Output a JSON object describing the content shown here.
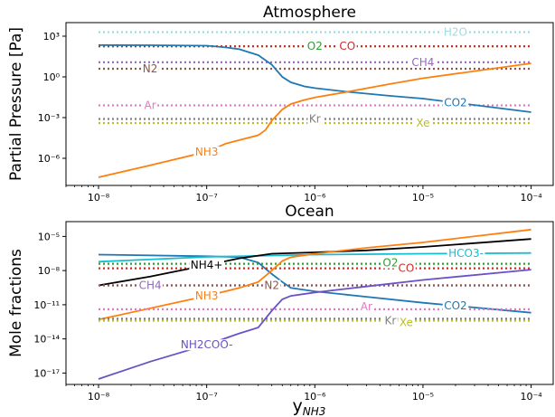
{
  "xlabel": "y",
  "xlabel_sub": "NH3",
  "chart_data": [
    {
      "type": "line",
      "title": "Atmosphere",
      "ylabel": "Partial Pressure [Pa]",
      "xscale": "log",
      "yscale": "log",
      "xlim": [
        5e-09,
        0.00016
      ],
      "ylim": [
        1e-08,
        10000.0
      ],
      "xticks": [
        1e-08,
        1e-07,
        1e-06,
        1e-05,
        0.0001
      ],
      "xtick_labels": [
        "10⁻⁸",
        "10⁻⁷",
        "10⁻⁶",
        "10⁻⁵",
        "10⁻⁴"
      ],
      "yticks": [
        1e-06,
        0.001,
        1,
        1000
      ],
      "ytick_labels": [
        "10⁻⁶",
        "10⁻³",
        "10⁰",
        "10³"
      ],
      "series": [
        {
          "name": "H2O",
          "color": "#9edae5",
          "style": "dotted",
          "x": [
            1e-08,
            0.0001
          ],
          "y": [
            2000,
            2000
          ],
          "label_x": 2e-05
        },
        {
          "name": "O2",
          "color": "#2ca02c",
          "style": "dotted",
          "x": [
            1e-08,
            0.0001
          ],
          "y": [
            180,
            180
          ],
          "label_x": 1e-06
        },
        {
          "name": "CO",
          "color": "#d62728",
          "style": "dotted",
          "x": [
            1e-08,
            0.0001
          ],
          "y": [
            180,
            180
          ],
          "label_x": 2e-06
        },
        {
          "name": "CH4",
          "color": "#9467bd",
          "style": "dotted",
          "x": [
            1e-08,
            0.0001
          ],
          "y": [
            12,
            12
          ],
          "label_x": 1e-05
        },
        {
          "name": "N2",
          "color": "#8c564b",
          "style": "dotted",
          "x": [
            1e-08,
            0.0001
          ],
          "y": [
            4,
            4
          ],
          "label_x": 3e-08
        },
        {
          "name": "Ar",
          "color": "#e377c2",
          "style": "dotted",
          "x": [
            1e-08,
            0.0001
          ],
          "y": [
            0.008,
            0.008
          ],
          "label_x": 3e-08
        },
        {
          "name": "Kr",
          "color": "#7f7f7f",
          "style": "dotted",
          "x": [
            1e-08,
            0.0001
          ],
          "y": [
            0.0008,
            0.0008
          ],
          "label_x": 1e-06
        },
        {
          "name": "Xe",
          "color": "#bcbd22",
          "style": "dotted",
          "x": [
            1e-08,
            0.0001
          ],
          "y": [
            0.0004,
            0.0004
          ],
          "label_x": 1e-05
        },
        {
          "name": "CO2",
          "color": "#1f77b4",
          "style": "solid",
          "x": [
            1e-08,
            3e-08,
            1e-07,
            1.5e-07,
            2e-07,
            3e-07,
            4e-07,
            5e-07,
            6e-07,
            8e-07,
            1e-06,
            2e-06,
            5e-06,
            1e-05,
            0.0001
          ],
          "y": [
            220,
            215,
            200,
            150,
            110,
            40,
            8,
            1,
            0.4,
            0.2,
            0.15,
            0.08,
            0.04,
            0.025,
            0.0025
          ],
          "label_x": 2e-05
        },
        {
          "name": "NH3",
          "color": "#ff7f0e",
          "style": "solid",
          "x": [
            1e-08,
            3e-08,
            1e-07,
            1.5e-07,
            2e-07,
            3e-07,
            3.5e-07,
            4e-07,
            5e-07,
            6e-07,
            8e-07,
            1e-06,
            2e-06,
            5e-06,
            1e-05,
            0.0001
          ],
          "y": [
            4e-08,
            3e-07,
            3e-06,
            1.2e-05,
            2.2e-05,
            5e-05,
            0.00012,
            0.0006,
            0.004,
            0.01,
            0.02,
            0.03,
            0.08,
            0.3,
            0.8,
            10
          ],
          "label_x": 1e-07
        }
      ]
    },
    {
      "type": "line",
      "title": "Ocean",
      "ylabel": "Mole fractions",
      "xscale": "log",
      "yscale": "log",
      "xlim": [
        5e-09,
        0.00016
      ],
      "ylim": [
        1e-18,
        0.0002
      ],
      "xticks": [
        1e-08,
        1e-07,
        1e-06,
        1e-05,
        0.0001
      ],
      "xtick_labels": [
        "10⁻⁸",
        "10⁻⁷",
        "10⁻⁶",
        "10⁻⁵",
        "10⁻⁴"
      ],
      "yticks": [
        1e-17,
        1e-14,
        1e-11,
        1e-08,
        1e-05
      ],
      "ytick_labels": [
        "10⁻¹⁷",
        "10⁻¹⁴",
        "10⁻¹¹",
        "10⁻⁸",
        "10⁻⁵"
      ],
      "series": [
        {
          "name": "CO2",
          "color": "#1f77b4",
          "style": "solid",
          "x": [
            1e-08,
            1e-07,
            2e-07,
            3e-07,
            4e-07,
            5e-07,
            6e-07,
            1e-06,
            3e-06,
            1e-05,
            0.0001
          ],
          "y": [
            2.5e-07,
            1.8e-07,
            1.5e-07,
            5e-08,
            5e-09,
            1e-09,
            3e-10,
            1.5e-10,
            5e-11,
            1.5e-11,
            2e-12
          ],
          "label_x": 2e-05
        },
        {
          "name": "HCO3-",
          "color": "#17becf",
          "style": "solid",
          "x": [
            1e-08,
            5e-08,
            1e-07,
            1e-06,
            1e-05,
            0.0001
          ],
          "y": [
            6e-08,
            1.2e-07,
            1.6e-07,
            2.5e-07,
            3e-07,
            3.5e-07
          ],
          "label_x": 2.5e-05
        },
        {
          "name": "O2",
          "color": "#2ca02c",
          "style": "dotted",
          "x": [
            1e-08,
            0.0001
          ],
          "y": [
            4e-08,
            4e-08
          ],
          "label_x": 5e-06
        },
        {
          "name": "CO",
          "color": "#d62728",
          "style": "dotted",
          "x": [
            1e-08,
            0.0001
          ],
          "y": [
            1.6e-08,
            1.6e-08
          ],
          "label_x": 7e-06
        },
        {
          "name": "NH4+",
          "color": "#000000",
          "style": "solid",
          "x": [
            1e-08,
            3e-08,
            1e-07,
            2e-07,
            4e-07,
            1e-06,
            3e-06,
            1e-05,
            0.0001
          ],
          "y": [
            5e-10,
            3e-09,
            3e-08,
            1.2e-07,
            3e-07,
            4e-07,
            6e-07,
            1.2e-06,
            6e-06
          ],
          "label_x": 1e-07
        },
        {
          "name": "CH4",
          "color": "#9467bd",
          "style": "dotted",
          "x": [
            1e-08,
            0.0001
          ],
          "y": [
            5e-10,
            5e-10
          ],
          "label_x": 3e-08
        },
        {
          "name": "N2",
          "color": "#8c564b",
          "style": "dotted",
          "x": [
            1e-08,
            0.0001
          ],
          "y": [
            5e-10,
            5e-10
          ],
          "label_x": 4e-07
        },
        {
          "name": "NH3",
          "color": "#ff7f0e",
          "style": "solid",
          "x": [
            1e-08,
            1e-07,
            2e-07,
            3e-07,
            4e-07,
            5e-07,
            6e-07,
            1e-06,
            3e-06,
            1e-05,
            0.0001
          ],
          "y": [
            5e-13,
            6e-11,
            3e-10,
            1e-09,
            1e-08,
            7e-08,
            1.5e-07,
            3e-07,
            1e-06,
            3e-06,
            4e-05
          ],
          "label_x": 1e-07
        },
        {
          "name": "Ar",
          "color": "#e377c2",
          "style": "dotted",
          "x": [
            1e-08,
            0.0001
          ],
          "y": [
            4e-12,
            4e-12
          ],
          "label_x": 3e-06
        },
        {
          "name": "Kr",
          "color": "#7f7f7f",
          "style": "dotted",
          "x": [
            1e-08,
            0.0001
          ],
          "y": [
            6e-13,
            6e-13
          ],
          "label_x": 5e-06
        },
        {
          "name": "Xe",
          "color": "#bcbd22",
          "style": "dotted",
          "x": [
            1e-08,
            0.0001
          ],
          "y": [
            4e-13,
            4e-13
          ],
          "label_x": 7e-06
        },
        {
          "name": "NH2COO-",
          "color": "#6a51c9",
          "style": "solid",
          "x": [
            1e-08,
            3e-08,
            1e-07,
            2e-07,
            3e-07,
            4e-07,
            5e-07,
            6e-07,
            1e-06,
            3e-06,
            1e-05,
            0.0001
          ],
          "y": [
            3e-18,
            1e-16,
            3e-15,
            3e-14,
            1e-13,
            3e-12,
            3e-11,
            6e-11,
            1.2e-10,
            4e-10,
            1.5e-09,
            1.2e-08
          ],
          "label_x": 1e-07
        }
      ]
    }
  ]
}
